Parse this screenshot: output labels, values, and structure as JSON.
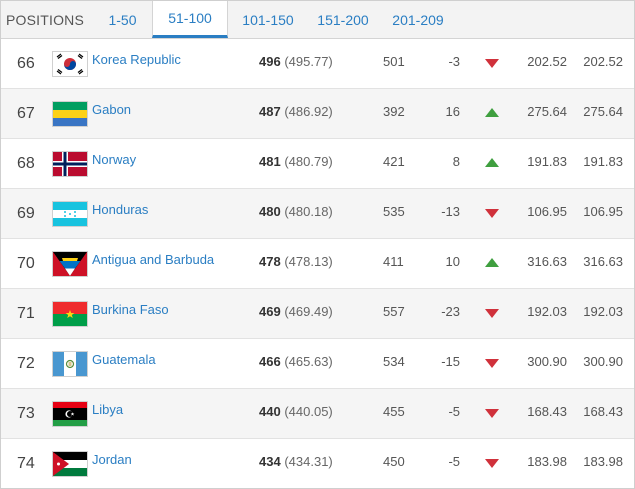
{
  "tabs": {
    "label": "POSITIONS",
    "items": [
      {
        "label": "1-50",
        "active": false
      },
      {
        "label": "51-100",
        "active": true
      },
      {
        "label": "101-150",
        "active": false
      },
      {
        "label": "151-200",
        "active": false
      },
      {
        "label": "201-209",
        "active": false
      }
    ]
  },
  "colors": {
    "link": "#2a7ec3",
    "up": "#3f9f3f",
    "down": "#d0313b"
  },
  "rows": [
    {
      "rank": "66",
      "flag": "korea-republic-flag",
      "name": "Korea Republic",
      "points": "496",
      "points_exact": "(495.77)",
      "previous": "501",
      "change": "-3",
      "trend": "down",
      "value1": "202.52",
      "value2": "202.52"
    },
    {
      "rank": "67",
      "flag": "gabon-flag",
      "name": "Gabon",
      "points": "487",
      "points_exact": "(486.92)",
      "previous": "392",
      "change": "16",
      "trend": "up",
      "value1": "275.64",
      "value2": "275.64"
    },
    {
      "rank": "68",
      "flag": "norway-flag",
      "name": "Norway",
      "points": "481",
      "points_exact": "(480.79)",
      "previous": "421",
      "change": "8",
      "trend": "up",
      "value1": "191.83",
      "value2": "191.83"
    },
    {
      "rank": "69",
      "flag": "honduras-flag",
      "name": "Honduras",
      "points": "480",
      "points_exact": "(480.18)",
      "previous": "535",
      "change": "-13",
      "trend": "down",
      "value1": "106.95",
      "value2": "106.95"
    },
    {
      "rank": "70",
      "flag": "antigua-and-barbuda-flag",
      "name": "Antigua and Barbuda",
      "points": "478",
      "points_exact": "(478.13)",
      "previous": "411",
      "change": "10",
      "trend": "up",
      "value1": "316.63",
      "value2": "316.63"
    },
    {
      "rank": "71",
      "flag": "burkina-faso-flag",
      "name": "Burkina Faso",
      "points": "469",
      "points_exact": "(469.49)",
      "previous": "557",
      "change": "-23",
      "trend": "down",
      "value1": "192.03",
      "value2": "192.03"
    },
    {
      "rank": "72",
      "flag": "guatemala-flag",
      "name": "Guatemala",
      "points": "466",
      "points_exact": "(465.63)",
      "previous": "534",
      "change": "-15",
      "trend": "down",
      "value1": "300.90",
      "value2": "300.90"
    },
    {
      "rank": "73",
      "flag": "libya-flag",
      "name": "Libya",
      "points": "440",
      "points_exact": "(440.05)",
      "previous": "455",
      "change": "-5",
      "trend": "down",
      "value1": "168.43",
      "value2": "168.43"
    },
    {
      "rank": "74",
      "flag": "jordan-flag",
      "name": "Jordan",
      "points": "434",
      "points_exact": "(434.31)",
      "previous": "450",
      "change": "-5",
      "trend": "down",
      "value1": "183.98",
      "value2": "183.98"
    }
  ]
}
